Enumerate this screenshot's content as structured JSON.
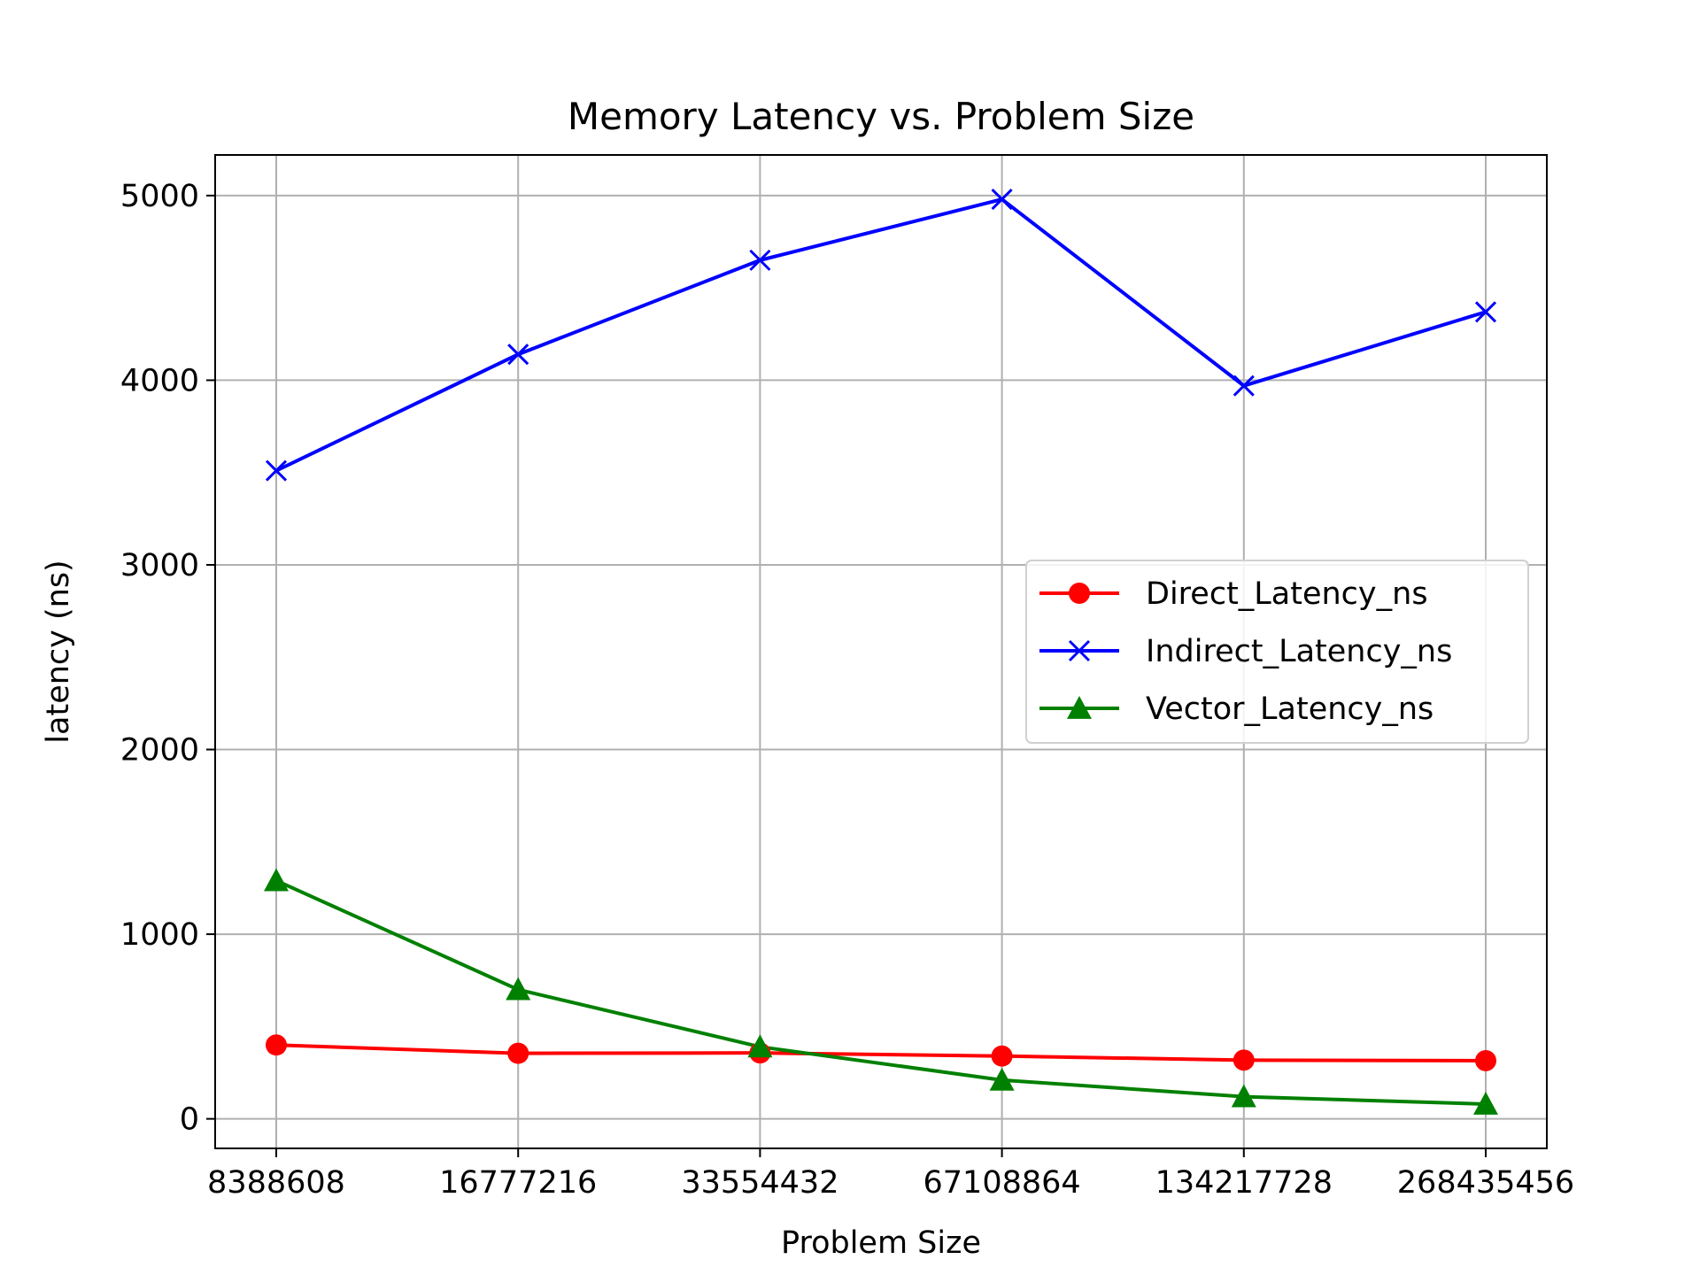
{
  "chart_data": {
    "type": "line",
    "title": "Memory Latency vs. Problem Size",
    "xlabel": "Problem Size",
    "ylabel": "latency (ns)",
    "categories": [
      "8388608",
      "16777216",
      "33554432",
      "67108864",
      "134217728",
      "268435456"
    ],
    "ylim": [
      -160,
      5220
    ],
    "yticks": [
      0,
      1000,
      2000,
      3000,
      4000,
      5000
    ],
    "grid": true,
    "legend_position": "center-right",
    "series": [
      {
        "name": "Direct_Latency_ns",
        "color": "#ff0000",
        "marker": "circle",
        "values": [
          400,
          355,
          357,
          340,
          318,
          315
        ]
      },
      {
        "name": "Indirect_Latency_ns",
        "color": "#0000ff",
        "marker": "x",
        "values": [
          3510,
          4140,
          4650,
          4980,
          3970,
          4370
        ]
      },
      {
        "name": "Vector_Latency_ns",
        "color": "#008000",
        "marker": "triangle",
        "values": [
          1290,
          700,
          390,
          210,
          120,
          80
        ]
      }
    ]
  }
}
